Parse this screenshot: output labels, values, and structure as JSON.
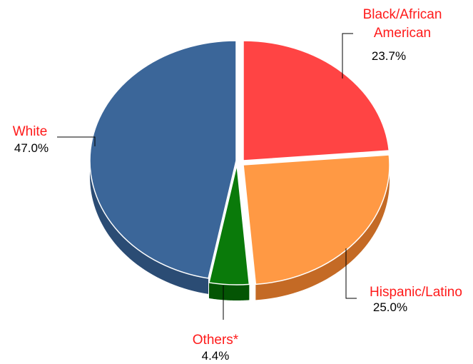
{
  "chart_data": {
    "type": "pie",
    "title": "",
    "slices": [
      {
        "name": "Black/African American",
        "label_lines": [
          "Black/African",
          "American"
        ],
        "value": 23.7,
        "value_label": "23.7%",
        "color": "#ff4444",
        "side_color": "#b02a2a"
      },
      {
        "name": "Hispanic/Latino",
        "label_lines": [
          "Hispanic/Latino"
        ],
        "value": 25.0,
        "value_label": "25.0%",
        "color": "#ff9944",
        "side_color": "#c46a25"
      },
      {
        "name": "Others*",
        "label_lines": [
          "Others*"
        ],
        "value": 4.4,
        "value_label": "4.4%",
        "color": "#0a7a0a",
        "side_color": "#045504"
      },
      {
        "name": "White",
        "label_lines": [
          "White"
        ],
        "value": 47.0,
        "value_label": "47.0%",
        "color": "#3b6699",
        "side_color": "#2b4c74"
      }
    ],
    "label_color": "#ff1a1a",
    "value_color": "#000000",
    "style": "3d-exploded"
  }
}
